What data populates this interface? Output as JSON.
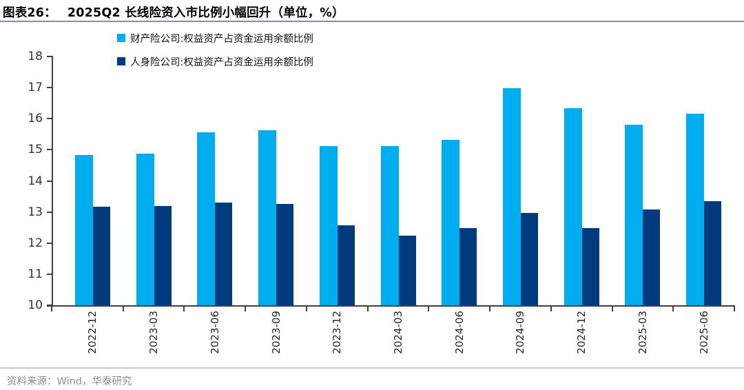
{
  "header": {
    "figure_label": "图表26：",
    "title": "2025Q2 长线险资入市比例小幅回升（单位，%）"
  },
  "chart_data": {
    "type": "bar",
    "title": "2025Q2 长线险资入市比例小幅回升（单位，%）",
    "unit": "%",
    "categories": [
      "2022-12",
      "2023-03",
      "2023-06",
      "2023-09",
      "2023-12",
      "2024-03",
      "2024-06",
      "2024-09",
      "2024-12",
      "2025-03",
      "2025-06"
    ],
    "series": [
      {
        "name": "财产险公司:权益资产占资金运用余额比例",
        "color": "#00AEEF",
        "values": [
          14.83,
          14.88,
          15.56,
          15.63,
          15.11,
          15.13,
          15.32,
          16.98,
          16.33,
          15.81,
          16.16
        ]
      },
      {
        "name": "人身险公司:权益资产占资金运用余额比例",
        "color": "#003B7E",
        "values": [
          13.16,
          13.2,
          13.3,
          13.26,
          12.58,
          12.25,
          12.48,
          12.96,
          12.49,
          13.08,
          13.34
        ]
      }
    ],
    "ylim": [
      10,
      18
    ],
    "ytick_step": 1,
    "grid": false,
    "legend_position": "top-left-stacked",
    "axis_color": "#404040"
  },
  "footer": {
    "source": "资料来源：Wind，华泰研究"
  }
}
